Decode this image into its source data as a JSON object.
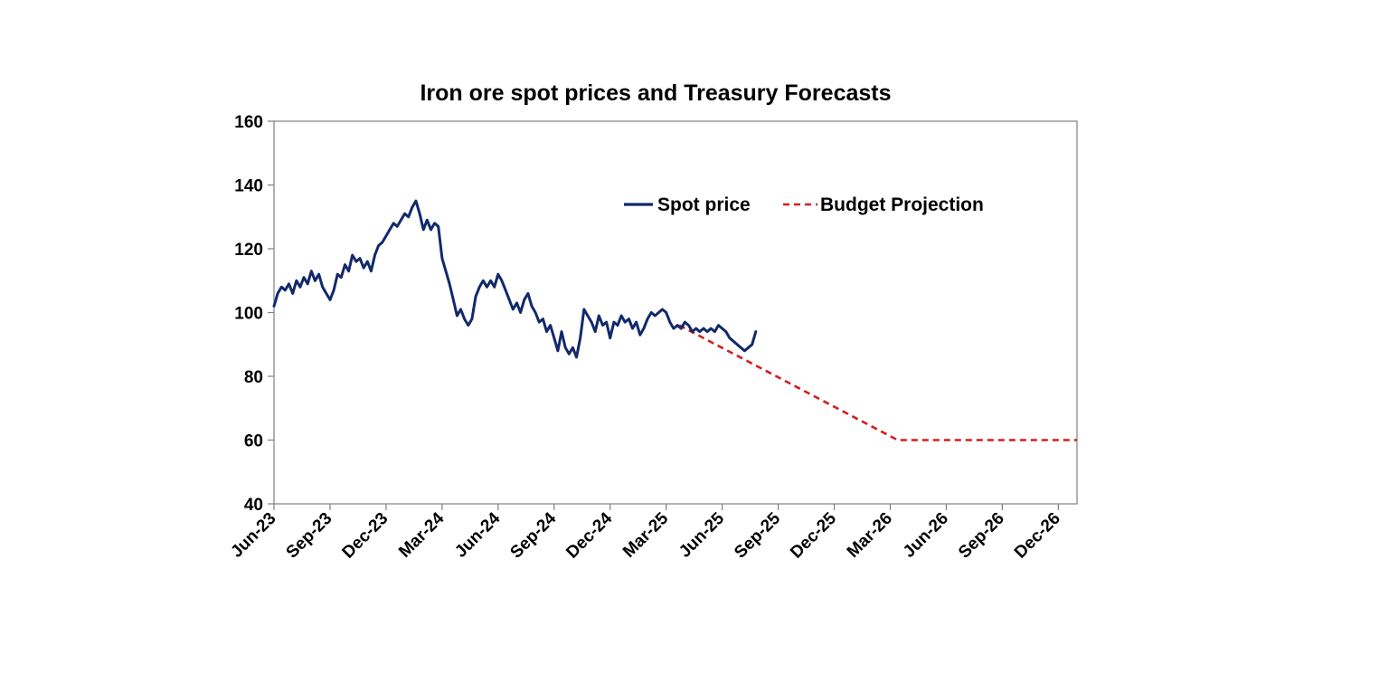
{
  "chart_data": {
    "type": "line",
    "title": "Iron ore spot prices and Treasury Forecasts",
    "xlabel": "",
    "ylabel": "",
    "ylim": [
      40,
      160
    ],
    "yticks": [
      40,
      60,
      80,
      100,
      120,
      140,
      160
    ],
    "x_range_months": [
      0,
      43
    ],
    "xticks": [
      {
        "label": "Jun-23",
        "month": 0
      },
      {
        "label": "Sep-23",
        "month": 3
      },
      {
        "label": "Dec-23",
        "month": 6
      },
      {
        "label": "Mar-24",
        "month": 9
      },
      {
        "label": "Jun-24",
        "month": 12
      },
      {
        "label": "Sep-24",
        "month": 15
      },
      {
        "label": "Dec-24",
        "month": 18
      },
      {
        "label": "Mar-25",
        "month": 21
      },
      {
        "label": "Jun-25",
        "month": 24
      },
      {
        "label": "Sep-25",
        "month": 27
      },
      {
        "label": "Dec-25",
        "month": 30
      },
      {
        "label": "Mar-26",
        "month": 33
      },
      {
        "label": "Jun-26",
        "month": 36
      },
      {
        "label": "Sep-26",
        "month": 39
      },
      {
        "label": "Dec-26",
        "month": 42
      }
    ],
    "legend_position": "top-right",
    "series": [
      {
        "name": "Spot price",
        "color": "#12296b",
        "style": "solid",
        "points": [
          [
            0.0,
            102
          ],
          [
            0.2,
            106
          ],
          [
            0.4,
            108
          ],
          [
            0.6,
            107
          ],
          [
            0.8,
            109
          ],
          [
            1.0,
            106
          ],
          [
            1.2,
            110
          ],
          [
            1.4,
            108
          ],
          [
            1.6,
            111
          ],
          [
            1.8,
            109
          ],
          [
            2.0,
            113
          ],
          [
            2.2,
            110
          ],
          [
            2.4,
            112
          ],
          [
            2.6,
            108
          ],
          [
            2.8,
            106
          ],
          [
            3.0,
            104
          ],
          [
            3.2,
            107
          ],
          [
            3.4,
            112
          ],
          [
            3.6,
            111
          ],
          [
            3.8,
            115
          ],
          [
            4.0,
            113
          ],
          [
            4.2,
            118
          ],
          [
            4.4,
            116
          ],
          [
            4.6,
            117
          ],
          [
            4.8,
            114
          ],
          [
            5.0,
            116
          ],
          [
            5.2,
            113
          ],
          [
            5.4,
            118
          ],
          [
            5.6,
            121
          ],
          [
            5.8,
            122
          ],
          [
            6.0,
            124
          ],
          [
            6.2,
            126
          ],
          [
            6.4,
            128
          ],
          [
            6.6,
            127
          ],
          [
            6.8,
            129
          ],
          [
            7.0,
            131
          ],
          [
            7.2,
            130
          ],
          [
            7.4,
            133
          ],
          [
            7.6,
            135
          ],
          [
            7.8,
            131
          ],
          [
            8.0,
            126
          ],
          [
            8.2,
            129
          ],
          [
            8.4,
            126
          ],
          [
            8.6,
            128
          ],
          [
            8.8,
            127
          ],
          [
            9.0,
            117
          ],
          [
            9.2,
            113
          ],
          [
            9.4,
            109
          ],
          [
            9.6,
            104
          ],
          [
            9.8,
            99
          ],
          [
            10.0,
            101
          ],
          [
            10.2,
            98
          ],
          [
            10.4,
            96
          ],
          [
            10.6,
            98
          ],
          [
            10.8,
            105
          ],
          [
            11.0,
            108
          ],
          [
            11.2,
            110
          ],
          [
            11.4,
            108
          ],
          [
            11.6,
            110
          ],
          [
            11.8,
            108
          ],
          [
            12.0,
            112
          ],
          [
            12.2,
            110
          ],
          [
            12.4,
            107
          ],
          [
            12.6,
            104
          ],
          [
            12.8,
            101
          ],
          [
            13.0,
            103
          ],
          [
            13.2,
            100
          ],
          [
            13.4,
            104
          ],
          [
            13.6,
            106
          ],
          [
            13.8,
            102
          ],
          [
            14.0,
            100
          ],
          [
            14.2,
            97
          ],
          [
            14.4,
            98
          ],
          [
            14.6,
            94
          ],
          [
            14.8,
            96
          ],
          [
            15.0,
            92
          ],
          [
            15.2,
            88
          ],
          [
            15.4,
            94
          ],
          [
            15.6,
            89
          ],
          [
            15.8,
            87
          ],
          [
            16.0,
            89
          ],
          [
            16.2,
            86
          ],
          [
            16.4,
            92
          ],
          [
            16.6,
            101
          ],
          [
            16.8,
            99
          ],
          [
            17.0,
            97
          ],
          [
            17.2,
            94
          ],
          [
            17.4,
            99
          ],
          [
            17.6,
            96
          ],
          [
            17.8,
            97
          ],
          [
            18.0,
            92
          ],
          [
            18.2,
            97
          ],
          [
            18.4,
            96
          ],
          [
            18.6,
            99
          ],
          [
            18.8,
            97
          ],
          [
            19.0,
            98
          ],
          [
            19.2,
            95
          ],
          [
            19.4,
            97
          ],
          [
            19.6,
            93
          ],
          [
            19.8,
            95
          ],
          [
            20.0,
            98
          ],
          [
            20.2,
            100
          ],
          [
            20.4,
            99
          ],
          [
            20.6,
            100
          ],
          [
            20.8,
            101
          ],
          [
            21.0,
            100
          ],
          [
            21.2,
            97
          ],
          [
            21.4,
            95
          ],
          [
            21.6,
            96
          ],
          [
            21.8,
            95
          ],
          [
            22.0,
            97
          ],
          [
            22.2,
            96
          ],
          [
            22.4,
            94
          ],
          [
            22.6,
            95
          ],
          [
            22.8,
            94
          ],
          [
            23.0,
            95
          ],
          [
            23.2,
            94
          ],
          [
            23.4,
            95
          ],
          [
            23.6,
            94
          ],
          [
            23.8,
            96
          ],
          [
            24.0,
            95
          ],
          [
            24.2,
            94
          ],
          [
            24.4,
            92
          ],
          [
            24.6,
            91
          ],
          [
            24.8,
            90
          ],
          [
            25.0,
            89
          ],
          [
            25.2,
            88
          ],
          [
            25.4,
            89
          ],
          [
            25.6,
            90
          ],
          [
            25.8,
            94
          ]
        ]
      },
      {
        "name": "Budget Projection",
        "color": "#d21f1f",
        "style": "dashed",
        "points": [
          [
            21.7,
            96
          ],
          [
            33.4,
            60
          ],
          [
            43.0,
            60
          ]
        ]
      }
    ]
  }
}
